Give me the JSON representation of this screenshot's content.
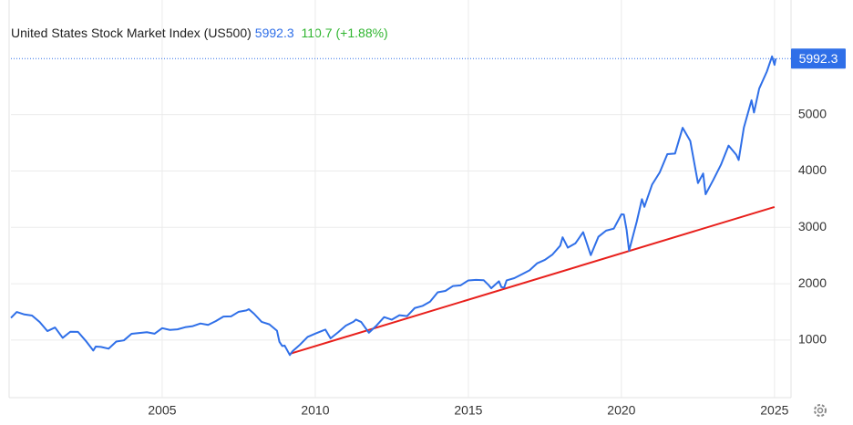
{
  "chart_data": {
    "type": "line",
    "title": "United States Stock Market Index (US500)",
    "last_price": 5992.3,
    "change": 110.7,
    "change_percent": {
      "value": 1.88,
      "label": "(+1.88%)"
    },
    "x": [
      2000.06,
      2000.25,
      2000.5,
      2000.75,
      2001.0,
      2001.25,
      2001.5,
      2001.75,
      2002.0,
      2002.25,
      2002.5,
      2002.75,
      2002.83,
      2003.0,
      2003.25,
      2003.5,
      2003.75,
      2004.0,
      2004.25,
      2004.5,
      2004.75,
      2005.0,
      2005.25,
      2005.5,
      2005.75,
      2006.0,
      2006.25,
      2006.5,
      2006.75,
      2007.0,
      2007.25,
      2007.5,
      2007.75,
      2007.83,
      2008.0,
      2008.25,
      2008.5,
      2008.75,
      2008.83,
      2008.92,
      2009.0,
      2009.17,
      2009.25,
      2009.5,
      2009.75,
      2010.0,
      2010.25,
      2010.33,
      2010.5,
      2010.75,
      2011.0,
      2011.25,
      2011.33,
      2011.5,
      2011.75,
      2012.0,
      2012.25,
      2012.5,
      2012.75,
      2013.0,
      2013.25,
      2013.5,
      2013.75,
      2014.0,
      2014.25,
      2014.5,
      2014.75,
      2015.0,
      2015.25,
      2015.5,
      2015.67,
      2015.75,
      2016.0,
      2016.08,
      2016.17,
      2016.25,
      2016.5,
      2016.75,
      2017.0,
      2017.25,
      2017.5,
      2017.75,
      2018.0,
      2018.08,
      2018.25,
      2018.5,
      2018.75,
      2019.0,
      2019.25,
      2019.5,
      2019.75,
      2020.0,
      2020.08,
      2020.17,
      2020.25,
      2020.5,
      2020.67,
      2020.75,
      2021.0,
      2021.25,
      2021.5,
      2021.75,
      2022.0,
      2022.25,
      2022.5,
      2022.67,
      2022.75,
      2023.0,
      2023.25,
      2023.5,
      2023.75,
      2023.83,
      2024.0,
      2024.25,
      2024.33,
      2024.5,
      2024.75,
      2024.92,
      2025.0,
      2025.04
    ],
    "series": [
      {
        "color": "#2f6fe8",
        "values": [
          1394,
          1499,
          1455,
          1436,
          1320,
          1160,
          1224,
          1040,
          1148,
          1147,
          990,
          815,
          885,
          880,
          848,
          975,
          996,
          1112,
          1126,
          1141,
          1114,
          1212,
          1181,
          1191,
          1229,
          1248,
          1295,
          1270,
          1336,
          1418,
          1421,
          1503,
          1527,
          1549,
          1468,
          1323,
          1280,
          1166,
          969,
          896,
          903,
          735,
          798,
          919,
          1057,
          1115,
          1169,
          1187,
          1031,
          1141,
          1258,
          1326,
          1364,
          1321,
          1131,
          1258,
          1408,
          1362,
          1441,
          1426,
          1569,
          1606,
          1682,
          1848,
          1872,
          1960,
          1972,
          2059,
          2068,
          2063,
          1972,
          1920,
          2044,
          1940,
          1932,
          2060,
          2099,
          2168,
          2239,
          2363,
          2423,
          2519,
          2674,
          2824,
          2640,
          2718,
          2914,
          2507,
          2834,
          2942,
          2977,
          3231,
          3226,
          2954,
          2585,
          3100,
          3500,
          3363,
          3756,
          3973,
          4298,
          4308,
          4766,
          4530,
          3785,
          3955,
          3586,
          3840,
          4109,
          4450,
          4288,
          4194,
          4770,
          5254,
          5036,
          5460,
          5762,
          6032,
          5881,
          5992.3
        ]
      }
    ],
    "trend_line": {
      "color": "#e8201c",
      "x": [
        2009.17,
        2025.0
      ],
      "values": [
        757,
        3362
      ]
    },
    "xlim": [
      2000.06,
      2025.54
    ],
    "ylim": [
      -20,
      6870
    ],
    "xticks": [
      2005,
      2010,
      2015,
      2020,
      2025
    ],
    "yticks": [
      1000,
      2000,
      3000,
      4000,
      5000
    ],
    "grid": true
  }
}
